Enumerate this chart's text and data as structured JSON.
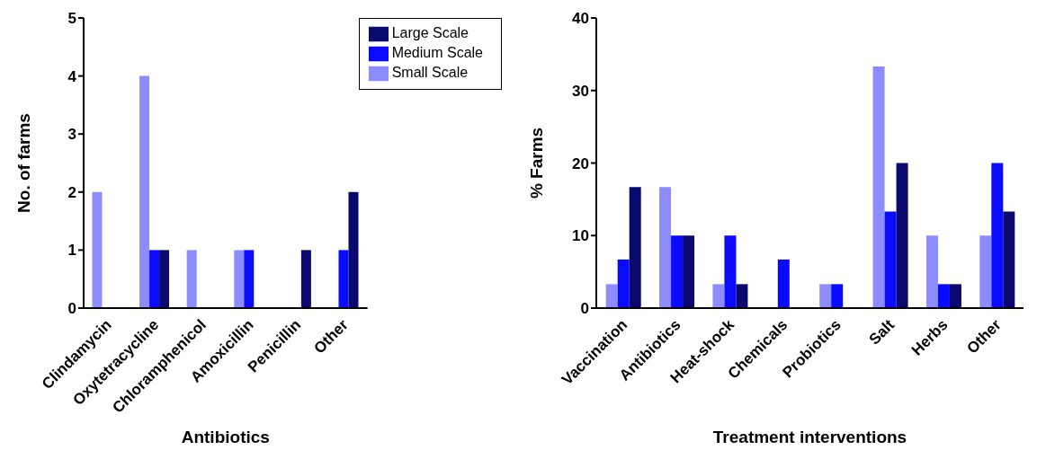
{
  "chart_data": [
    {
      "type": "bar",
      "xlabel": "Antibiotics",
      "ylabel": "No. of farms",
      "categories": [
        "Clindamycin",
        "Oxytetracycline",
        "Chloramphenicol",
        "Amoxicillin",
        "Penicillin",
        "Other"
      ],
      "ylim": [
        0,
        5
      ],
      "yticks": [
        0,
        1,
        2,
        3,
        4,
        5
      ],
      "grid": false,
      "legend": "top right",
      "series": [
        {
          "name": "Small Scale",
          "color": "#8c8cff",
          "values": [
            2,
            4,
            1,
            1,
            0,
            0
          ]
        },
        {
          "name": "Medium Scale",
          "color": "#0a0aff",
          "values": [
            0,
            1,
            0,
            1,
            0,
            1
          ]
        },
        {
          "name": "Large Scale",
          "color": "#0a0a6e",
          "values": [
            0,
            1,
            0,
            0,
            1,
            2
          ]
        }
      ]
    },
    {
      "type": "bar",
      "xlabel": "Treatment interventions",
      "ylabel": "% Farms",
      "categories": [
        "Vaccination",
        "Antibiotics",
        "Heat-shock",
        "Chemicals",
        "Probiotics",
        "Salt",
        "Herbs",
        "Other"
      ],
      "ylim": [
        0,
        40
      ],
      "yticks": [
        0,
        10,
        20,
        30,
        40
      ],
      "grid": false,
      "series": [
        {
          "color": "#8c8cff",
          "values": [
            3.3,
            16.7,
            3.3,
            0,
            3.3,
            33.3,
            10,
            10
          ]
        },
        {
          "color": "#0a0aff",
          "values": [
            6.7,
            10,
            10,
            6.7,
            3.3,
            13.3,
            3.3,
            20
          ]
        },
        {
          "color": "#0a0a6e",
          "values": [
            16.7,
            10,
            3.3,
            0,
            0,
            20,
            3.3,
            13.3
          ]
        }
      ]
    }
  ]
}
